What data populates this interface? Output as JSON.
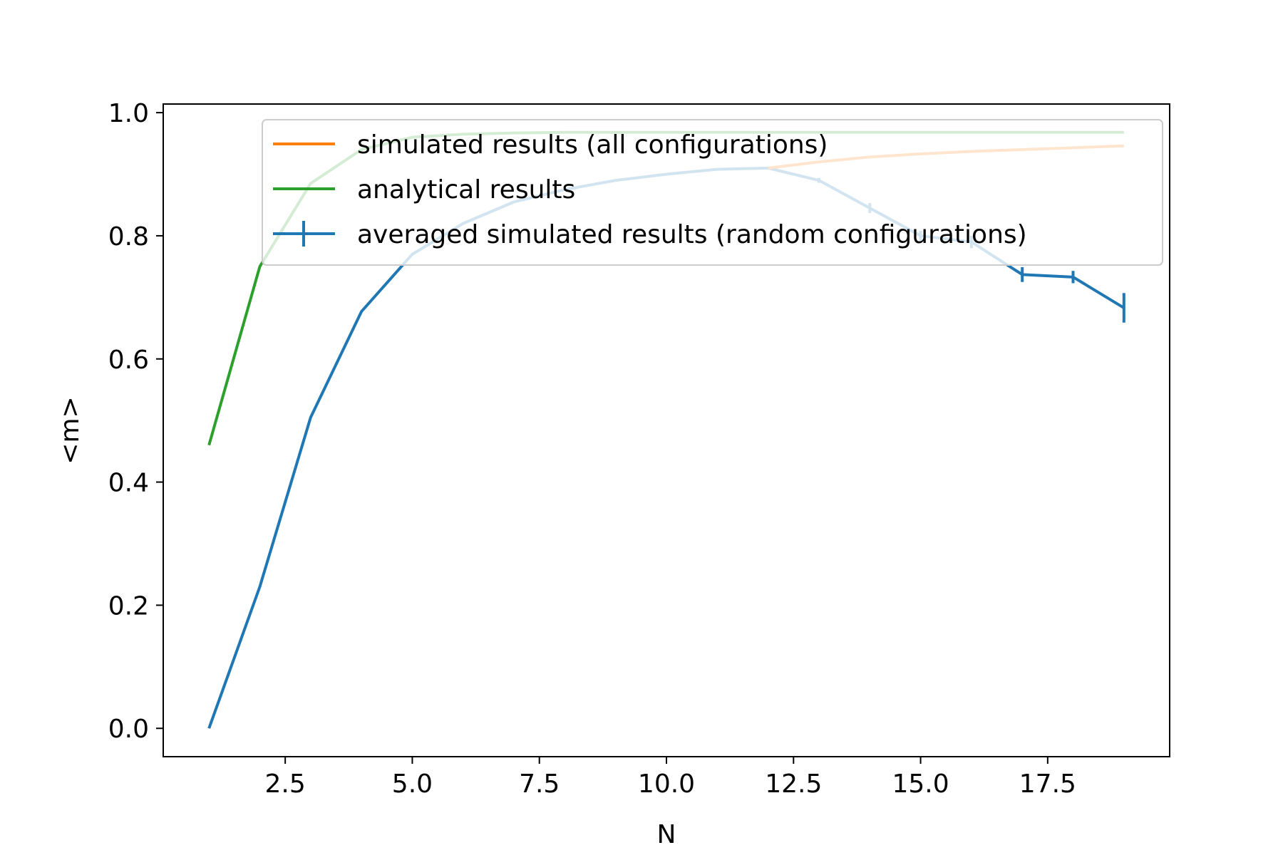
{
  "chart_data": {
    "type": "line",
    "title": "",
    "xlabel": "N",
    "ylabel": "<m>",
    "xlim": [
      0.1,
      19.9
    ],
    "ylim": [
      -0.046,
      1.014
    ],
    "x_ticks": [
      2.5,
      5.0,
      7.5,
      10.0,
      12.5,
      15.0,
      17.5
    ],
    "x_tick_labels": [
      "2.5",
      "5.0",
      "7.5",
      "10.0",
      "12.5",
      "15.0",
      "17.5"
    ],
    "y_ticks": [
      0.0,
      0.2,
      0.4,
      0.6,
      0.8,
      1.0
    ],
    "y_tick_labels": [
      "0.0",
      "0.2",
      "0.4",
      "0.6",
      "0.8",
      "1.0"
    ],
    "grid": false,
    "legend_position": "top-right",
    "series": [
      {
        "name": "simulated results (all configurations)",
        "color": "#ff7f0e",
        "x": [
          12,
          13,
          14,
          15,
          16,
          17,
          18,
          19
        ],
        "y": [
          0.91,
          0.92,
          0.928,
          0.933,
          0.937,
          0.94,
          0.943,
          0.946
        ]
      },
      {
        "name": "analytical results",
        "color": "#2ca02c",
        "x": [
          1,
          2,
          3,
          4,
          5,
          6,
          7,
          8,
          9,
          10,
          11,
          12,
          13,
          14,
          15,
          16,
          17,
          18,
          19
        ],
        "y": [
          0.46,
          0.75,
          0.885,
          0.94,
          0.96,
          0.965,
          0.967,
          0.968,
          0.968,
          0.968,
          0.968,
          0.968,
          0.968,
          0.968,
          0.968,
          0.968,
          0.968,
          0.968,
          0.968
        ]
      },
      {
        "name": "averaged simulated results (random configurations)",
        "color": "#1f77b4",
        "x": [
          1,
          2,
          3,
          4,
          5,
          6,
          7,
          8,
          9,
          10,
          11,
          12,
          13,
          14,
          15,
          16,
          17,
          18,
          19
        ],
        "y": [
          0.0,
          0.23,
          0.505,
          0.677,
          0.77,
          0.82,
          0.855,
          0.875,
          0.89,
          0.9,
          0.908,
          0.91,
          0.89,
          0.845,
          0.8,
          0.79,
          0.737,
          0.733,
          0.683
        ],
        "yerr": [
          0.0,
          0.0,
          0.0,
          0.0,
          0.0,
          0.0,
          0.0,
          0.0,
          0.0,
          0.0,
          0.0,
          0.0,
          0.004,
          0.008,
          0.008,
          0.01,
          0.012,
          0.01,
          0.024
        ]
      }
    ]
  }
}
